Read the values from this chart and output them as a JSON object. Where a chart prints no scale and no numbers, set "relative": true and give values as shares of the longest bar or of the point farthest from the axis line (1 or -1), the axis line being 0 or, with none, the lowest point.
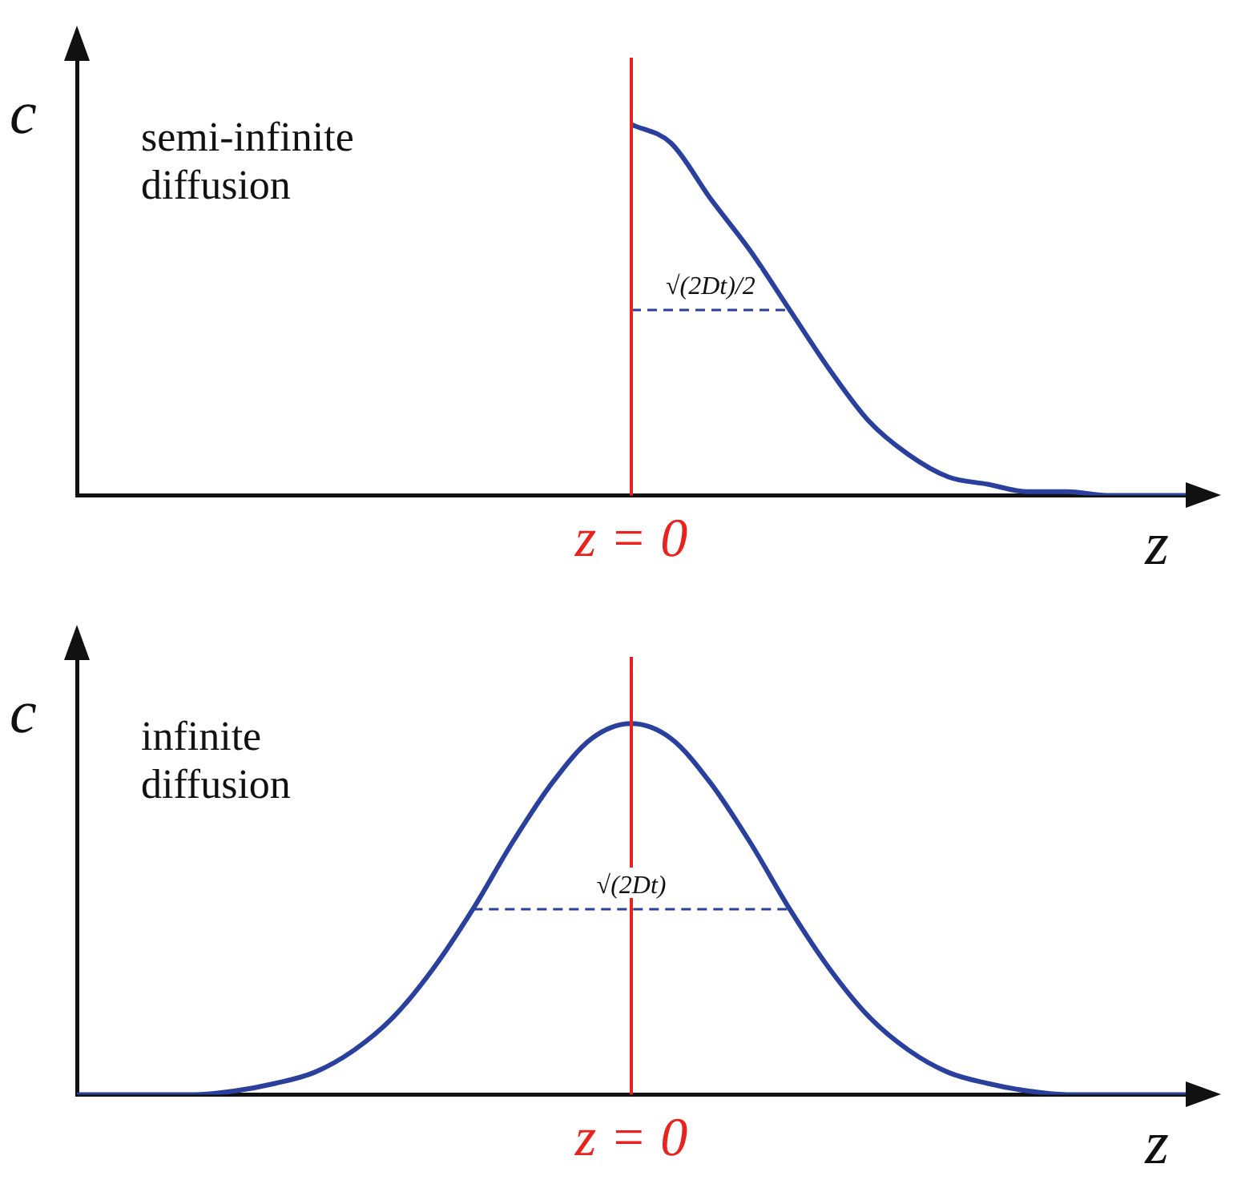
{
  "chart_data": [
    {
      "type": "line",
      "relative": true,
      "xlabel": "z",
      "ylabel": "c",
      "categories": [
        null,
        null,
        null,
        null,
        null,
        null,
        null,
        null,
        null,
        null,
        null,
        null,
        null,
        null,
        null,
        null,
        null,
        null,
        null,
        null,
        null,
        null,
        null,
        null,
        null,
        null,
        null,
        null,
        null
      ],
      "series": [
        {
          "color": "#2b3f9c",
          "values": [
            null,
            null,
            null,
            null,
            null,
            null,
            null,
            null,
            null,
            null,
            null,
            null,
            null,
            null,
            1,
            0.95,
            0.8,
            0.66,
            0.5,
            0.34,
            0.2,
            0.11,
            0.05,
            0.03,
            0.01,
            0.01,
            0,
            0,
            0
          ]
        },
        {
          "color": "#2b3f9c",
          "line_style": "dashed",
          "values": [
            null,
            null,
            null,
            null,
            null,
            null,
            null,
            null,
            null,
            null,
            null,
            null,
            null,
            null,
            0.5,
            0.5,
            0.5,
            0.5,
            0.5,
            null,
            null,
            null,
            null,
            null,
            null,
            null,
            null,
            null,
            null
          ]
        }
      ],
      "ref_lines": [
        {
          "axis": "x",
          "label": "z = 0",
          "color": "#e8231f"
        }
      ],
      "annotations": [
        "semi-infinite diffusion",
        "√(2Dt)/2"
      ],
      "grid": false,
      "legend": false,
      "marker": "none",
      "line_style": "solid"
    },
    {
      "type": "line",
      "relative": true,
      "xlabel": "z",
      "ylabel": "c",
      "categories": [
        null,
        null,
        null,
        null,
        null,
        null,
        null,
        null,
        null,
        null,
        null,
        null,
        null,
        null,
        null,
        null,
        null,
        null,
        null,
        null,
        null,
        null,
        null,
        null,
        null,
        null,
        null,
        null,
        null
      ],
      "series": [
        {
          "color": "#2b3f9c",
          "values": [
            0,
            0,
            0,
            0,
            0.01,
            0.03,
            0.06,
            0.12,
            0.21,
            0.34,
            0.5,
            0.68,
            0.84,
            0.96,
            1,
            0.96,
            0.84,
            0.68,
            0.5,
            0.34,
            0.21,
            0.12,
            0.06,
            0.03,
            0.01,
            0,
            0,
            0,
            0
          ]
        },
        {
          "color": "#2b3f9c",
          "line_style": "dashed",
          "values": [
            null,
            null,
            null,
            null,
            null,
            null,
            null,
            null,
            null,
            null,
            0.5,
            0.5,
            0.5,
            0.5,
            0.5,
            0.5,
            0.5,
            0.5,
            0.5,
            null,
            null,
            null,
            null,
            null,
            null,
            null,
            null,
            null,
            null
          ]
        }
      ],
      "ref_lines": [
        {
          "axis": "x",
          "label": "z = 0",
          "color": "#e8231f"
        }
      ],
      "annotations": [
        "infinite diffusion",
        "√(2Dt)"
      ],
      "grid": false,
      "legend": false,
      "marker": "none",
      "line_style": "solid"
    }
  ]
}
